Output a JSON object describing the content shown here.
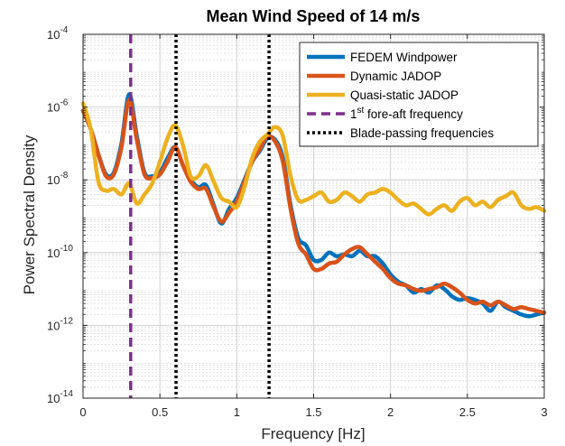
{
  "chart_data": {
    "type": "line",
    "title": "Mean Wind Speed of 14 m/s",
    "xlabel": "Frequency [Hz]",
    "ylabel": "Power Spectral Density",
    "xlim": [
      0,
      3
    ],
    "ylim_log10": [
      -14,
      -4
    ],
    "yscale": "log",
    "grid": true,
    "minor_grid": true,
    "legend_position": "top-right",
    "x_ticks": [
      "0",
      "0.5",
      "1",
      "1.5",
      "2",
      "2.5",
      "3"
    ],
    "x_tick_values": [
      0,
      0.5,
      1,
      1.5,
      2,
      2.5,
      3
    ],
    "y_ticks": [
      {
        "base": "10",
        "exp": "-14",
        "value": -14
      },
      {
        "base": "10",
        "exp": "-12",
        "value": -12
      },
      {
        "base": "10",
        "exp": "-10",
        "value": -10
      },
      {
        "base": "10",
        "exp": "-8",
        "value": -8
      },
      {
        "base": "10",
        "exp": "-6",
        "value": -6
      },
      {
        "base": "10",
        "exp": "-4",
        "value": -4
      }
    ],
    "series": [
      {
        "name": "FEDEM Windpower",
        "color": "#0072BD",
        "x": [
          0,
          0.05,
          0.1,
          0.15,
          0.2,
          0.25,
          0.3,
          0.35,
          0.4,
          0.45,
          0.5,
          0.55,
          0.6,
          0.65,
          0.7,
          0.75,
          0.8,
          0.85,
          0.9,
          0.95,
          1.0,
          1.05,
          1.1,
          1.15,
          1.2,
          1.25,
          1.3,
          1.35,
          1.4,
          1.45,
          1.5,
          1.55,
          1.6,
          1.65,
          1.7,
          1.75,
          1.8,
          1.85,
          1.9,
          1.95,
          2.0,
          2.05,
          2.1,
          2.15,
          2.2,
          2.25,
          2.3,
          2.35,
          2.4,
          2.45,
          2.5,
          2.55,
          2.6,
          2.65,
          2.7,
          2.75,
          2.8,
          2.85,
          2.9,
          2.95,
          3.0
        ],
        "log10y": [
          -6.1,
          -6.6,
          -7.3,
          -7.85,
          -7.8,
          -7.0,
          -5.65,
          -6.8,
          -7.8,
          -7.9,
          -7.8,
          -7.4,
          -7.1,
          -7.6,
          -8.0,
          -8.2,
          -8.15,
          -8.7,
          -9.2,
          -8.8,
          -8.5,
          -8.0,
          -7.5,
          -7.2,
          -6.85,
          -6.9,
          -7.4,
          -8.7,
          -9.6,
          -9.8,
          -10.2,
          -10.2,
          -10.0,
          -10.1,
          -10.05,
          -10.1,
          -9.95,
          -10.1,
          -10.1,
          -10.3,
          -10.6,
          -10.8,
          -10.9,
          -11.1,
          -11.0,
          -11.1,
          -10.9,
          -11.0,
          -11.2,
          -11.3,
          -11.25,
          -11.3,
          -11.4,
          -11.6,
          -11.35,
          -11.5,
          -11.6,
          -11.7,
          -11.75,
          -11.7,
          -11.65
        ]
      },
      {
        "name": "Dynamic JADOP",
        "color": "#D95319",
        "x": [
          0,
          0.05,
          0.1,
          0.15,
          0.2,
          0.25,
          0.3,
          0.35,
          0.4,
          0.45,
          0.5,
          0.55,
          0.6,
          0.65,
          0.7,
          0.75,
          0.8,
          0.85,
          0.9,
          0.95,
          1.0,
          1.05,
          1.1,
          1.15,
          1.2,
          1.25,
          1.3,
          1.35,
          1.4,
          1.45,
          1.5,
          1.55,
          1.6,
          1.65,
          1.7,
          1.75,
          1.8,
          1.85,
          1.9,
          1.95,
          2.0,
          2.05,
          2.1,
          2.15,
          2.2,
          2.25,
          2.3,
          2.35,
          2.4,
          2.45,
          2.5,
          2.55,
          2.6,
          2.65,
          2.7,
          2.75,
          2.8,
          2.85,
          2.9,
          2.95,
          3.0
        ],
        "log10y": [
          -6.1,
          -6.6,
          -7.3,
          -7.9,
          -7.85,
          -7.1,
          -5.8,
          -6.9,
          -7.85,
          -7.95,
          -7.85,
          -7.5,
          -7.1,
          -7.6,
          -8.05,
          -8.25,
          -8.25,
          -8.75,
          -9.15,
          -8.9,
          -8.6,
          -8.05,
          -7.5,
          -7.15,
          -6.8,
          -6.95,
          -7.5,
          -8.8,
          -9.75,
          -10.05,
          -10.45,
          -10.45,
          -10.3,
          -10.25,
          -10.05,
          -9.9,
          -9.85,
          -10.05,
          -10.25,
          -10.45,
          -10.7,
          -10.85,
          -10.9,
          -11.0,
          -11.05,
          -11.0,
          -10.95,
          -10.85,
          -10.95,
          -11.1,
          -11.3,
          -11.4,
          -11.35,
          -11.45,
          -11.35,
          -11.45,
          -11.55,
          -11.5,
          -11.55,
          -11.6,
          -11.65
        ]
      },
      {
        "name": "Quasi-static JADOP",
        "color": "#EDB120",
        "x": [
          0,
          0.05,
          0.1,
          0.15,
          0.2,
          0.25,
          0.3,
          0.35,
          0.4,
          0.45,
          0.5,
          0.55,
          0.6,
          0.65,
          0.7,
          0.75,
          0.8,
          0.85,
          0.9,
          0.95,
          1.0,
          1.05,
          1.1,
          1.15,
          1.2,
          1.25,
          1.3,
          1.35,
          1.4,
          1.45,
          1.5,
          1.55,
          1.6,
          1.65,
          1.7,
          1.75,
          1.8,
          1.85,
          1.9,
          1.95,
          2.0,
          2.05,
          2.1,
          2.15,
          2.2,
          2.25,
          2.3,
          2.35,
          2.4,
          2.45,
          2.5,
          2.55,
          2.6,
          2.65,
          2.7,
          2.75,
          2.8,
          2.85,
          2.9,
          2.95,
          3.0
        ],
        "log10y": [
          -5.9,
          -6.6,
          -8.05,
          -8.3,
          -8.25,
          -8.4,
          -8.1,
          -8.65,
          -8.4,
          -8.1,
          -7.5,
          -6.85,
          -6.5,
          -7.05,
          -7.9,
          -7.9,
          -7.6,
          -8.05,
          -8.5,
          -8.6,
          -8.75,
          -8.2,
          -7.4,
          -6.95,
          -6.75,
          -6.55,
          -6.8,
          -7.9,
          -8.55,
          -8.55,
          -8.45,
          -8.35,
          -8.6,
          -8.55,
          -8.35,
          -8.45,
          -8.6,
          -8.4,
          -8.35,
          -8.25,
          -8.35,
          -8.55,
          -8.7,
          -8.65,
          -8.8,
          -8.95,
          -8.8,
          -8.7,
          -8.85,
          -8.6,
          -8.5,
          -8.7,
          -8.6,
          -8.75,
          -8.55,
          -8.45,
          -8.35,
          -8.7,
          -8.8,
          -8.75,
          -8.85
        ]
      }
    ],
    "vertical_lines": [
      {
        "x": 0.31,
        "color": "#7E2F8E",
        "style": "dashed",
        "legend_index": 0
      },
      {
        "x": 0.605,
        "color": "#000000",
        "style": "dotted",
        "legend_index": 1
      },
      {
        "x": 1.21,
        "color": "#000000",
        "style": "dotted",
        "legend_index": 1
      }
    ],
    "legend": [
      {
        "label": "FEDEM Windpower",
        "color": "#0072BD",
        "style": "solid"
      },
      {
        "label": "Dynamic JADOP",
        "color": "#D95319",
        "style": "solid"
      },
      {
        "label": "Quasi-static JADOP",
        "color": "#EDB120",
        "style": "solid"
      },
      {
        "label_sup": "st",
        "label_pre": "1",
        "label_post": " fore-aft frequency",
        "color": "#7E2F8E",
        "style": "dashed"
      },
      {
        "label": "Blade-passing frequencies",
        "color": "#000000",
        "style": "dotted"
      }
    ]
  }
}
